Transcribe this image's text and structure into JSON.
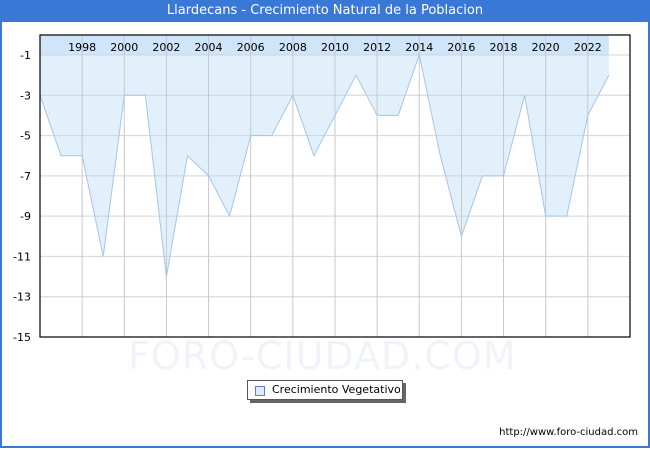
{
  "title": "Llardecans - Crecimiento Natural de la Poblacion",
  "watermark": "FORO-CIUDAD.COM",
  "source": "http://www.foro-ciudad.com",
  "legend": {
    "label": "Crecimiento Vegetativo"
  },
  "colors": {
    "frame": "#3a78d8",
    "fill": "#e2f0fc",
    "band": "#cfe5fa",
    "line": "#a6c4ec",
    "grid": "#d4d4d4",
    "vgrid": "#c8c8c8"
  },
  "chart_data": {
    "type": "area",
    "title": "Llardecans - Crecimiento Natural de la Poblacion",
    "xlabel": "",
    "ylabel": "",
    "x": [
      1996,
      1997,
      1998,
      1999,
      2000,
      2001,
      2002,
      2003,
      2004,
      2005,
      2006,
      2007,
      2008,
      2009,
      2010,
      2011,
      2012,
      2013,
      2014,
      2015,
      2016,
      2017,
      2018,
      2019,
      2020,
      2021,
      2022,
      2023
    ],
    "series": [
      {
        "name": "Crecimiento Vegetativo",
        "values": [
          -3,
          -6,
          -6,
          -11,
          -3,
          -3,
          -12,
          -6,
          -7,
          -9,
          -5,
          -5,
          -3,
          -6,
          -4,
          -2,
          -4,
          -4,
          -1,
          -6,
          -10,
          -7,
          -7,
          -3,
          -9,
          -9,
          -4,
          -2
        ]
      }
    ],
    "x_tick_labels": [
      "1998",
      "2000",
      "2002",
      "2004",
      "2006",
      "2008",
      "2010",
      "2012",
      "2014",
      "2016",
      "2018",
      "2020",
      "2022"
    ],
    "y_tick_labels": [
      "-1",
      "-3",
      "-5",
      "-7",
      "-9",
      "-11",
      "-13",
      "-15"
    ],
    "ylim": [
      -15,
      0
    ],
    "xlim": [
      1996,
      2024
    ],
    "grid": true,
    "legend_position": "bottom"
  }
}
